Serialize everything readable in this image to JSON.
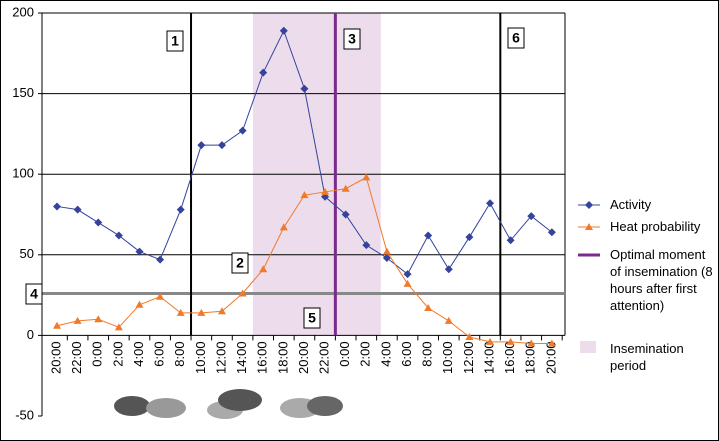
{
  "chart_data": {
    "type": "line",
    "categories": [
      "20:00",
      "22:00",
      "0:00",
      "2:00",
      "4:00",
      "6:00",
      "8:00",
      "10:00",
      "12:00",
      "14:00",
      "16:00",
      "18:00",
      "20:00",
      "22:00",
      "0:00",
      "2:00",
      "4:00",
      "6:00",
      "8:00",
      "10:00",
      "12:00",
      "14:00",
      "16:00",
      "18:00",
      "20:00"
    ],
    "series": [
      {
        "name": "Activity",
        "color": "#34449c",
        "marker": "diamond",
        "values": [
          80,
          78,
          70,
          62,
          52,
          47,
          78,
          118,
          118,
          127,
          163,
          189,
          153,
          86,
          75,
          56,
          48,
          38,
          62,
          41,
          61,
          82,
          59,
          74,
          64
        ]
      },
      {
        "name": "Heat probability",
        "color": "#f07a2a",
        "marker": "triangle",
        "values": [
          6,
          9,
          10,
          5,
          19,
          24,
          14,
          14,
          15,
          26,
          41,
          67,
          87,
          89,
          91,
          98,
          52,
          32,
          17,
          9,
          -1,
          -4,
          -4,
          -5,
          -5
        ]
      }
    ],
    "ylim": [
      -50,
      200
    ],
    "yticks": [
      -50,
      0,
      50,
      100,
      150,
      200
    ],
    "grid": true,
    "optimal_moment": {
      "name": "Optimal moment of insemination (8 hours after first attention)",
      "color": "#7b2b8b",
      "x": 13.5
    },
    "insemination_period": {
      "name": "Insemination period",
      "color": "#ecdcec",
      "x": [
        9.5,
        15.7
      ]
    },
    "markers": {
      "vertical_x": [
        6.5,
        21.5
      ],
      "horizontal_y": 26
    },
    "annotations": [
      "1",
      "2",
      "3",
      "4",
      "5",
      "6"
    ]
  }
}
